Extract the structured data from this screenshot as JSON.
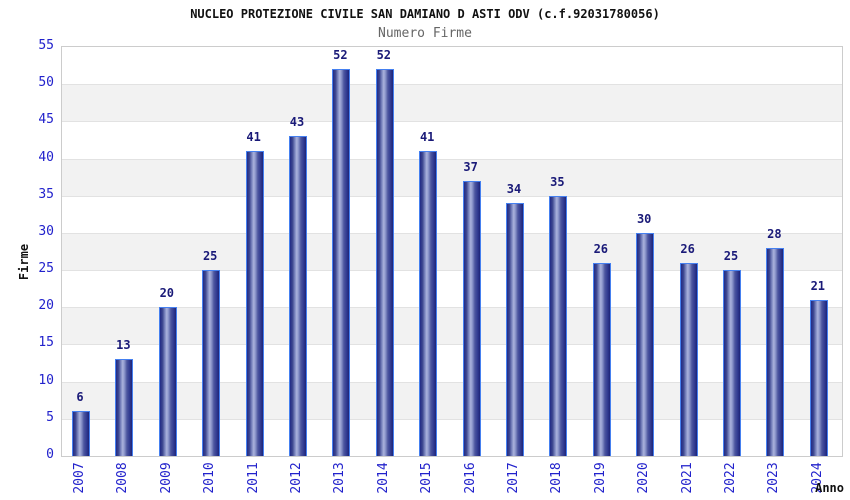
{
  "chart_data": {
    "type": "bar",
    "title": "NUCLEO PROTEZIONE CIVILE SAN DAMIANO D ASTI ODV (c.f.92031780056)",
    "subtitle": "Numero Firme",
    "xlabel": "Anno",
    "ylabel": "Firme",
    "categories": [
      "2007",
      "2008",
      "2009",
      "2010",
      "2011",
      "2012",
      "2013",
      "2014",
      "2015",
      "2016",
      "2017",
      "2018",
      "2019",
      "2020",
      "2021",
      "2022",
      "2023",
      "2024"
    ],
    "values": [
      6,
      13,
      20,
      25,
      41,
      43,
      52,
      52,
      41,
      37,
      34,
      35,
      26,
      30,
      26,
      25,
      28,
      21
    ],
    "ylim": [
      0,
      55
    ],
    "ytick_step": 5,
    "grid": "horizontal-lines-with-alternating-bands",
    "legend": "none",
    "colors": {
      "axis_tick_text": "#2222cc",
      "value_label_text": "#1a1a78",
      "title_text": "#111111",
      "subtitle_text": "#666666",
      "bar_border": "#4580f0",
      "bar_dark": "#222a86",
      "bar_light": "#aab2dc",
      "band_fill": "#f2f2f2",
      "gridline": "#e2e2e2",
      "plot_border": "#cccccc",
      "background": "#ffffff"
    }
  }
}
